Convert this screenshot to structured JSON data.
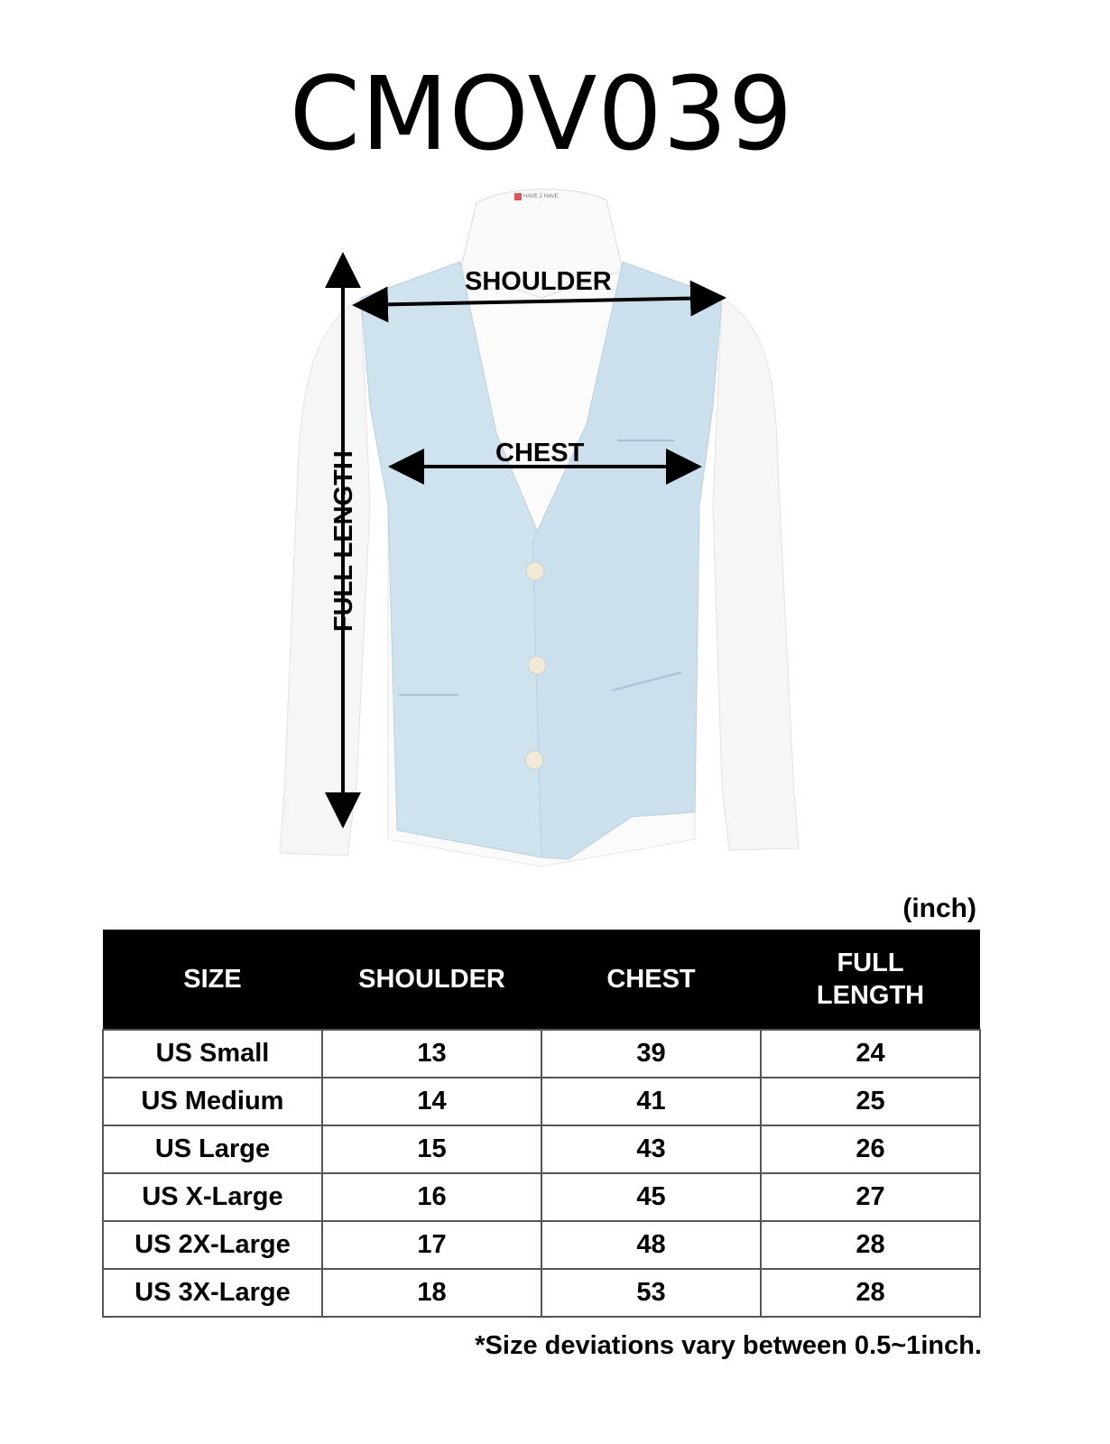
{
  "title": "CMOV039",
  "brand_tag": "HAVE 2 HAVE",
  "colors": {
    "vest": "#cfe3ee",
    "shirt": "#f7f7f7",
    "header_bg": "#000000"
  },
  "measure_labels": {
    "shoulder": "SHOULDER",
    "chest": "CHEST",
    "full_length": "FULL LENGTH"
  },
  "unit": "(inch)",
  "table": {
    "headers": [
      "SIZE",
      "SHOULDER",
      "CHEST",
      "FULL\nLENGTH"
    ],
    "rows": [
      [
        "US Small",
        "13",
        "39",
        "24"
      ],
      [
        "US Medium",
        "14",
        "41",
        "25"
      ],
      [
        "US Large",
        "15",
        "43",
        "26"
      ],
      [
        "US X-Large",
        "16",
        "45",
        "27"
      ],
      [
        "US 2X-Large",
        "17",
        "48",
        "28"
      ],
      [
        "US 3X-Large",
        "18",
        "53",
        "28"
      ]
    ]
  },
  "footnote": "*Size deviations vary between 0.5~1inch."
}
